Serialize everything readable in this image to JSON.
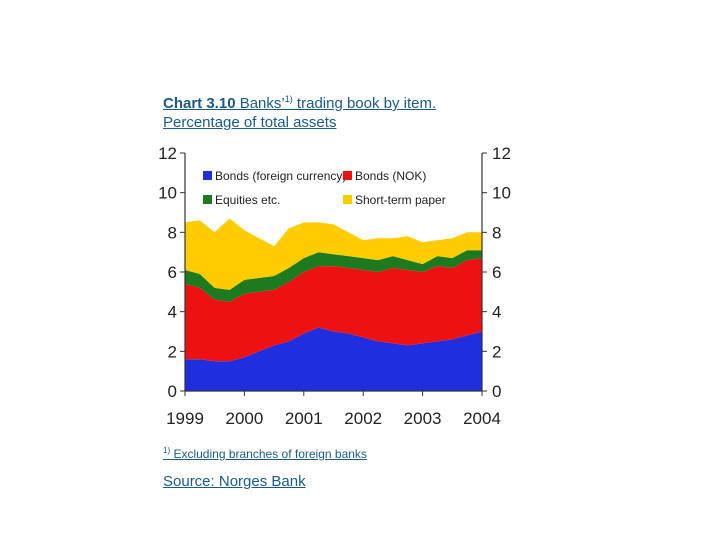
{
  "title": {
    "prefix": "Chart 3.10",
    "text": " Banks’",
    "sup": "1)",
    "rest": " trading book by item.",
    "line2": "Percentage of total assets"
  },
  "footnote": {
    "sup": "1)",
    "text": " Excluding branches of foreign banks"
  },
  "source": "Source: Norges Bank",
  "chart_data": {
    "type": "area",
    "stacked": true,
    "x": [
      1999.0,
      1999.25,
      1999.5,
      1999.75,
      2000.0,
      2000.25,
      2000.5,
      2000.75,
      2001.0,
      2001.25,
      2001.5,
      2001.75,
      2002.0,
      2002.25,
      2002.5,
      2002.75,
      2003.0,
      2003.25,
      2003.5,
      2003.75,
      2004.0
    ],
    "series": [
      {
        "name": "Bonds (foreign currency)",
        "color": "#1f2fe0",
        "values": [
          1.6,
          1.6,
          1.5,
          1.5,
          1.7,
          2.0,
          2.3,
          2.5,
          2.9,
          3.2,
          3.0,
          2.9,
          2.7,
          2.5,
          2.4,
          2.3,
          2.4,
          2.5,
          2.6,
          2.8,
          3.0
        ]
      },
      {
        "name": "Bonds (NOK)",
        "color": "#ee1111",
        "values": [
          3.8,
          3.6,
          3.1,
          3.0,
          3.2,
          3.0,
          2.8,
          3.0,
          3.1,
          3.1,
          3.3,
          3.3,
          3.4,
          3.5,
          3.8,
          3.8,
          3.6,
          3.8,
          3.6,
          3.8,
          3.7
        ]
      },
      {
        "name": "Equities etc.",
        "color": "#1e7a1e",
        "values": [
          0.7,
          0.7,
          0.6,
          0.6,
          0.7,
          0.7,
          0.7,
          0.7,
          0.7,
          0.7,
          0.6,
          0.6,
          0.6,
          0.6,
          0.6,
          0.5,
          0.4,
          0.5,
          0.5,
          0.5,
          0.4
        ]
      },
      {
        "name": "Short-term paper",
        "color": "#ffcc00",
        "values": [
          2.4,
          2.7,
          2.8,
          3.6,
          2.5,
          2.0,
          1.5,
          2.0,
          1.8,
          1.5,
          1.5,
          1.2,
          0.9,
          1.1,
          0.9,
          1.2,
          1.1,
          0.8,
          1.0,
          0.9,
          0.9
        ]
      }
    ],
    "xtick_labels": [
      "1999",
      "2000",
      "2001",
      "2002",
      "2003",
      "2004"
    ],
    "ylim": [
      0,
      12
    ],
    "yticks": [
      0,
      2,
      4,
      6,
      8,
      10,
      12
    ],
    "ytick_labels": [
      "0",
      "2",
      "4",
      "6",
      "8",
      "10",
      "12"
    ],
    "legend_placement": "top, inside plot area",
    "grid": false
  }
}
